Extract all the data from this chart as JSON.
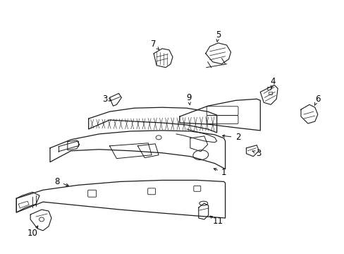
{
  "bg_color": "#ffffff",
  "line_color": "#1a1a1a",
  "label_color": "#000000",
  "figsize": [
    4.89,
    3.6
  ],
  "dpi": 100,
  "label_fontsize": 8.5
}
